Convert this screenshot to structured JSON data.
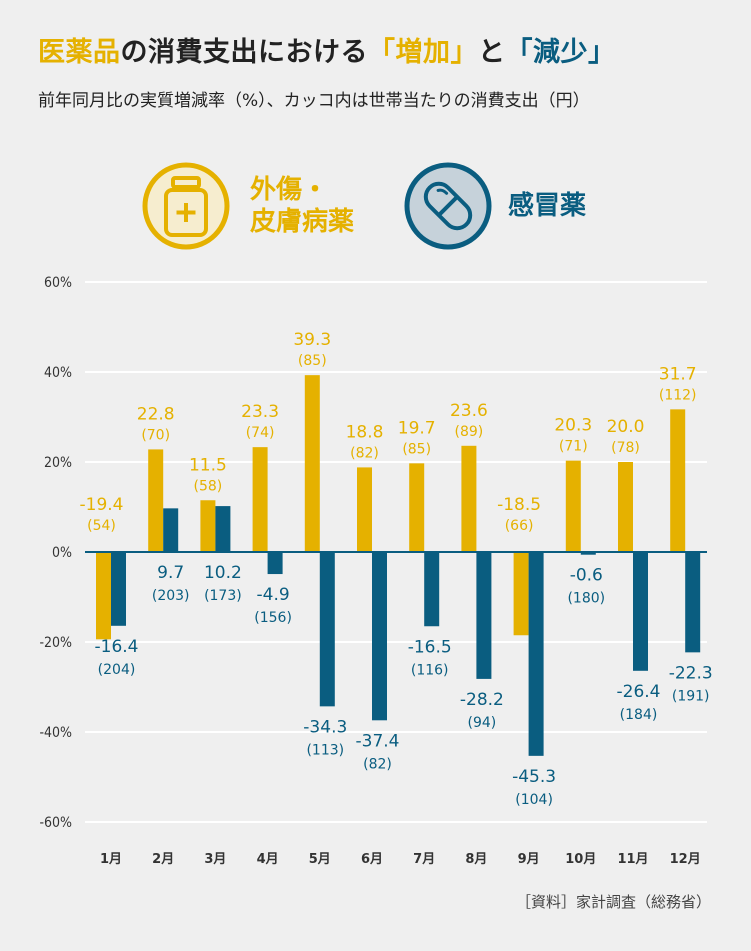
{
  "title": {
    "part1": "医薬品",
    "part2": "の消費支出における",
    "part3": "「増加」",
    "part4": "と",
    "part5": "「減少」"
  },
  "subtitle": "前年同月比の実質増減率（%）、カッコ内は世帯当たりの消費支出（円）",
  "legend": {
    "series_a_line1": "外傷・",
    "series_a_line2": "皮膚病薬",
    "series_b": "感冒薬",
    "icon_a": "medicine-bottle-icon",
    "icon_b": "capsule-icon"
  },
  "source": "［資料］家計調査（総務省）",
  "colors": {
    "series_a": "#e5b100",
    "series_b": "#0a5d80",
    "gridline": "#ffffff",
    "zero_line": "#0a5d80",
    "background": "#efefef"
  },
  "chart_data": {
    "type": "bar",
    "categories": [
      "1月",
      "2月",
      "3月",
      "4月",
      "5月",
      "6月",
      "7月",
      "8月",
      "9月",
      "10月",
      "11月",
      "12月"
    ],
    "series": [
      {
        "name": "外傷・皮膚病薬",
        "values": [
          -19.4,
          22.8,
          11.5,
          23.3,
          39.3,
          18.8,
          19.7,
          23.6,
          -18.5,
          20.3,
          20.0,
          31.7
        ],
        "amounts": [
          "(54)",
          "(70)",
          "(58)",
          "(74)",
          "(85)",
          "(82)",
          "(85)",
          "(89)",
          "(66)",
          "(71)",
          "(78)",
          "(112)"
        ]
      },
      {
        "name": "感冒薬",
        "values": [
          -16.4,
          9.7,
          10.2,
          -4.9,
          -34.3,
          -37.4,
          -16.5,
          -28.2,
          -45.3,
          -0.6,
          -26.4,
          -22.3
        ],
        "amounts": [
          "(204)",
          "(203)",
          "(173)",
          "(156)",
          "(113)",
          "(82)",
          "(116)",
          "(94)",
          "(104)",
          "(180)",
          "(184)",
          "(191)"
        ]
      }
    ],
    "ylim": [
      -60,
      60
    ],
    "yticks": [
      "60%",
      "40%",
      "20%",
      "0%",
      "-20%",
      "-40%",
      "-60%"
    ],
    "ytick_values": [
      60,
      40,
      20,
      0,
      -20,
      -40,
      -60
    ],
    "grid": true
  }
}
